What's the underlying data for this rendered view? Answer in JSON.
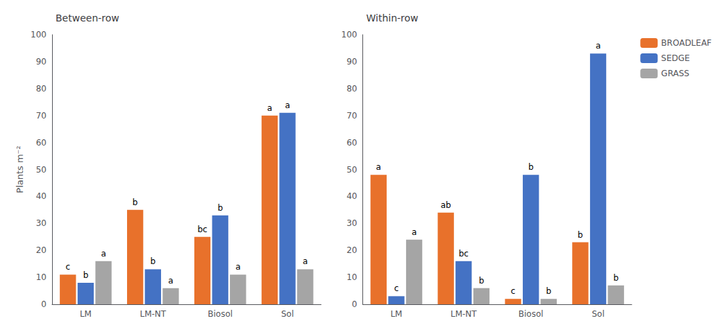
{
  "chart_data": [
    {
      "type": "bar",
      "title": "Between-row",
      "categories": [
        "LM",
        "LM-NT",
        "Biosol",
        "Sol"
      ],
      "series": [
        {
          "name": "BROADLEAF",
          "color": "#E8712B",
          "values": [
            11,
            35,
            25,
            70
          ],
          "value_labels": [
            "c",
            "b",
            "bc",
            "a"
          ]
        },
        {
          "name": "SEDGE",
          "color": "#4472C4",
          "values": [
            8,
            13,
            33,
            71
          ],
          "value_labels": [
            "b",
            "b",
            "b",
            "a"
          ]
        },
        {
          "name": "GRASS",
          "color": "#A5A5A5",
          "values": [
            16,
            6,
            11,
            13
          ],
          "value_labels": [
            "a",
            "a",
            "a",
            "a"
          ]
        }
      ],
      "ylabel": "Plants m⁻²",
      "ylim": [
        0,
        100
      ],
      "yticks": [
        0,
        10,
        20,
        30,
        40,
        50,
        60,
        70,
        80,
        90,
        100
      ],
      "grid": false,
      "data_labels": true
    },
    {
      "type": "bar",
      "title": "Within-row",
      "categories": [
        "LM",
        "LM-NT",
        "Biosol",
        "Sol"
      ],
      "series": [
        {
          "name": "BROADLEAF",
          "color": "#E8712B",
          "values": [
            48,
            34,
            2,
            23
          ],
          "value_labels": [
            "a",
            "ab",
            "c",
            "b"
          ]
        },
        {
          "name": "SEDGE",
          "color": "#4472C4",
          "values": [
            3,
            16,
            48,
            93
          ],
          "value_labels": [
            "c",
            "bc",
            "b",
            "a"
          ]
        },
        {
          "name": "GRASS",
          "color": "#A5A5A5",
          "values": [
            24,
            6,
            2,
            7
          ],
          "value_labels": [
            "a",
            "b",
            "b",
            "b"
          ]
        }
      ],
      "ylim": [
        0,
        100
      ],
      "yticks": [
        0,
        10,
        20,
        30,
        40,
        50,
        60,
        70,
        80,
        90,
        100
      ],
      "grid": false,
      "data_labels": true,
      "legend": "upper right"
    }
  ]
}
